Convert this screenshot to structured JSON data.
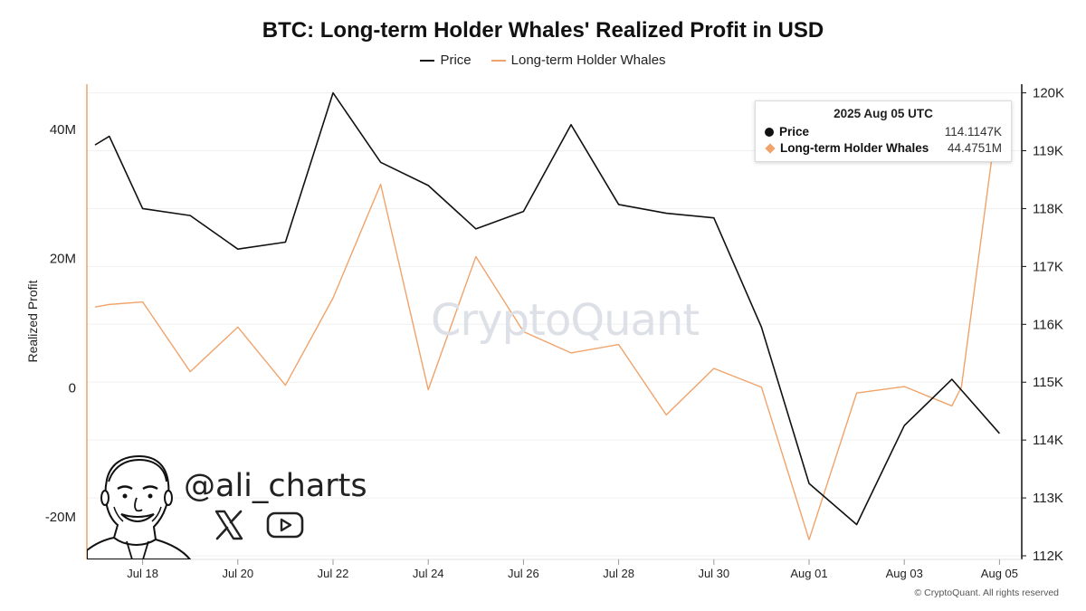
{
  "chart_data": {
    "type": "line",
    "title": "BTC: Long-term Holder Whales' Realized Profit in USD",
    "ylabel_left": "Realized Profit",
    "x": [
      "Jul 17",
      "Jul 18",
      "Jul 19",
      "Jul 20",
      "Jul 21",
      "Jul 22",
      "Jul 23",
      "Jul 24",
      "Jul 25",
      "Jul 26",
      "Jul 27",
      "Jul 28",
      "Jul 29",
      "Jul 30",
      "Jul 31",
      "Aug 01",
      "Aug 02",
      "Aug 03",
      "Aug 04",
      "Aug 05"
    ],
    "x_tick_labels": [
      "Jul 18",
      "Jul 20",
      "Jul 22",
      "Jul 24",
      "Jul 26",
      "Jul 28",
      "Jul 30",
      "Aug 01",
      "Aug 03",
      "Aug 05"
    ],
    "y_left_ticks": [
      {
        "v": 40000000,
        "label": "40M"
      },
      {
        "v": 20000000,
        "label": "20M"
      },
      {
        "v": 0,
        "label": "0"
      },
      {
        "v": -20000000,
        "label": "-20M"
      }
    ],
    "y_left_range": [
      -26000000,
      47000000
    ],
    "y_right_ticks": [
      {
        "v": 112000,
        "label": "112K"
      },
      {
        "v": 113000,
        "label": "113K"
      },
      {
        "v": 114000,
        "label": "114K"
      },
      {
        "v": 115000,
        "label": "115K"
      },
      {
        "v": 116000,
        "label": "116K"
      },
      {
        "v": 117000,
        "label": "117K"
      },
      {
        "v": 118000,
        "label": "118K"
      },
      {
        "v": 119000,
        "label": "119K"
      },
      {
        "v": 120000,
        "label": "120K"
      }
    ],
    "y_right_range": [
      112000,
      120150
    ],
    "series": [
      {
        "name": "Price",
        "axis": "right",
        "color": "#111111",
        "x": [
          "Jul 17",
          "Jul 17",
          "Jul 18",
          "Jul 19",
          "Jul 20",
          "Jul 21",
          "Jul 22",
          "Jul 23",
          "Jul 24",
          "Jul 25",
          "Jul 26",
          "Jul 27",
          "Jul 28",
          "Jul 29",
          "Jul 30",
          "Jul 31",
          "Aug 01",
          "Aug 02",
          "Aug 03",
          "Aug 04",
          "Aug 05"
        ],
        "values": [
          119100,
          119250,
          118000,
          117880,
          117300,
          117420,
          120000,
          118800,
          118400,
          117650,
          117950,
          119450,
          118070,
          117920,
          117840,
          115950,
          113250,
          112540,
          114250,
          115050,
          114115
        ]
      },
      {
        "name": "Long-term Holder Whales",
        "axis": "left",
        "color": "#f0a36a",
        "x": [
          "Jul 17",
          "Jul 17",
          "Jul 18",
          "Jul 19",
          "Jul 20",
          "Jul 21",
          "Jul 22",
          "Jul 23",
          "Jul 24",
          "Jul 25",
          "Jul 26",
          "Jul 27",
          "Jul 28",
          "Jul 29",
          "Jul 30",
          "Jul 31",
          "Aug 01",
          "Aug 02",
          "Aug 03",
          "Aug 04",
          "Aug 04",
          "Aug 05"
        ],
        "values": [
          12500000,
          12900000,
          13300000,
          2500000,
          9400000,
          400000,
          13900000,
          31500000,
          -300000,
          20300000,
          8700000,
          5400000,
          6700000,
          -4200000,
          3000000,
          100000,
          -23500000,
          -800000,
          200000,
          -2800000,
          100000,
          44475100
        ]
      }
    ]
  },
  "tooltip": {
    "date": "2025 Aug 05 UTC",
    "rows": [
      {
        "name": "Price",
        "value": "114.1147K"
      },
      {
        "name": "Long-term Holder Whales",
        "value": "44.4751M"
      }
    ]
  },
  "watermark": "CryptoQuant",
  "branding": {
    "handle": "@ali_charts",
    "icons": [
      "avatar-portrait",
      "x-logo-icon",
      "youtube-icon"
    ]
  },
  "footer": "© CryptoQuant. All rights reserved"
}
